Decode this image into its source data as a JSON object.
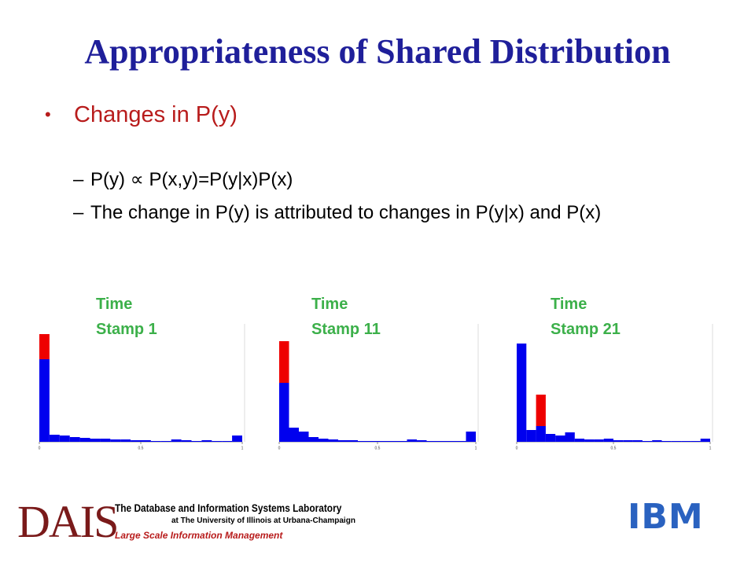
{
  "title": "Appropriateness of Shared Distribution",
  "bullets": [
    {
      "text": "Changes in P(y)",
      "items": [
        "P(y) ∝ P(x,y)=P(y|x)P(x)",
        "The change in P(y) is attributed to changes in P(y|x) and P(x)"
      ]
    }
  ],
  "chart_data": [
    {
      "type": "histogram",
      "title": "Time Stamp 1",
      "bins": [
        0,
        0.05,
        0.1,
        0.15,
        0.2,
        0.25,
        0.3,
        0.35,
        0.4,
        0.45,
        0.5,
        0.55,
        0.6,
        0.65,
        0.7,
        0.75,
        0.8,
        0.85,
        0.9,
        0.95,
        1
      ],
      "series": [
        {
          "color": "#0000ee",
          "values": [
            105,
            9,
            8,
            6,
            5,
            4,
            4,
            3,
            3,
            2,
            2,
            1,
            1,
            3,
            2,
            1,
            2,
            1,
            1,
            8
          ]
        },
        {
          "color": "#ee0000",
          "values": [
            32,
            0,
            0,
            0,
            0,
            0,
            0,
            0,
            0,
            0,
            0,
            0,
            0,
            0,
            0,
            0,
            0,
            0,
            0,
            0
          ]
        }
      ],
      "xlim": [
        0,
        1
      ],
      "xticks": [
        0,
        0.5,
        1
      ],
      "ylim": [
        0,
        140
      ]
    },
    {
      "type": "histogram",
      "title": "Time Stamp 11",
      "bins": [
        0,
        0.05,
        0.1,
        0.15,
        0.2,
        0.25,
        0.3,
        0.35,
        0.4,
        0.45,
        0.5,
        0.55,
        0.6,
        0.65,
        0.7,
        0.75,
        0.8,
        0.85,
        0.9,
        0.95,
        1
      ],
      "series": [
        {
          "color": "#0000ee",
          "values": [
            75,
            18,
            13,
            6,
            4,
            3,
            2,
            2,
            1,
            1,
            1,
            1,
            1,
            3,
            2,
            1,
            1,
            1,
            1,
            13
          ]
        },
        {
          "color": "#ee0000",
          "values": [
            53,
            0,
            0,
            0,
            0,
            0,
            0,
            0,
            0,
            0,
            0,
            0,
            0,
            0,
            0,
            0,
            0,
            0,
            0,
            0
          ]
        }
      ],
      "xlim": [
        0,
        1
      ],
      "xticks": [
        0,
        0.5,
        1
      ],
      "ylim": [
        0,
        140
      ]
    },
    {
      "type": "histogram",
      "title": "Time Stamp 21",
      "bins": [
        0,
        0.05,
        0.1,
        0.15,
        0.2,
        0.25,
        0.3,
        0.35,
        0.4,
        0.45,
        0.5,
        0.55,
        0.6,
        0.65,
        0.7,
        0.75,
        0.8,
        0.85,
        0.9,
        0.95,
        1
      ],
      "series": [
        {
          "color": "#0000ee",
          "values": [
            125,
            15,
            20,
            10,
            8,
            12,
            4,
            3,
            3,
            4,
            2,
            2,
            2,
            1,
            2,
            1,
            1,
            1,
            1,
            4
          ]
        },
        {
          "color": "#ee0000",
          "values": [
            0,
            0,
            40,
            0,
            0,
            0,
            0,
            0,
            0,
            0,
            0,
            0,
            0,
            0,
            0,
            0,
            0,
            0,
            0,
            0
          ]
        }
      ],
      "xlim": [
        0,
        1
      ],
      "xticks": [
        0,
        0.5,
        1
      ],
      "ylim": [
        0,
        140
      ]
    }
  ],
  "footer": {
    "logo": "DAIS",
    "lab": "The Database and Information Systems Laboratory",
    "university": "at The University of Illinois at Urbana-Champaign",
    "tagline": "Large Scale Information Management",
    "company": "IBM"
  }
}
